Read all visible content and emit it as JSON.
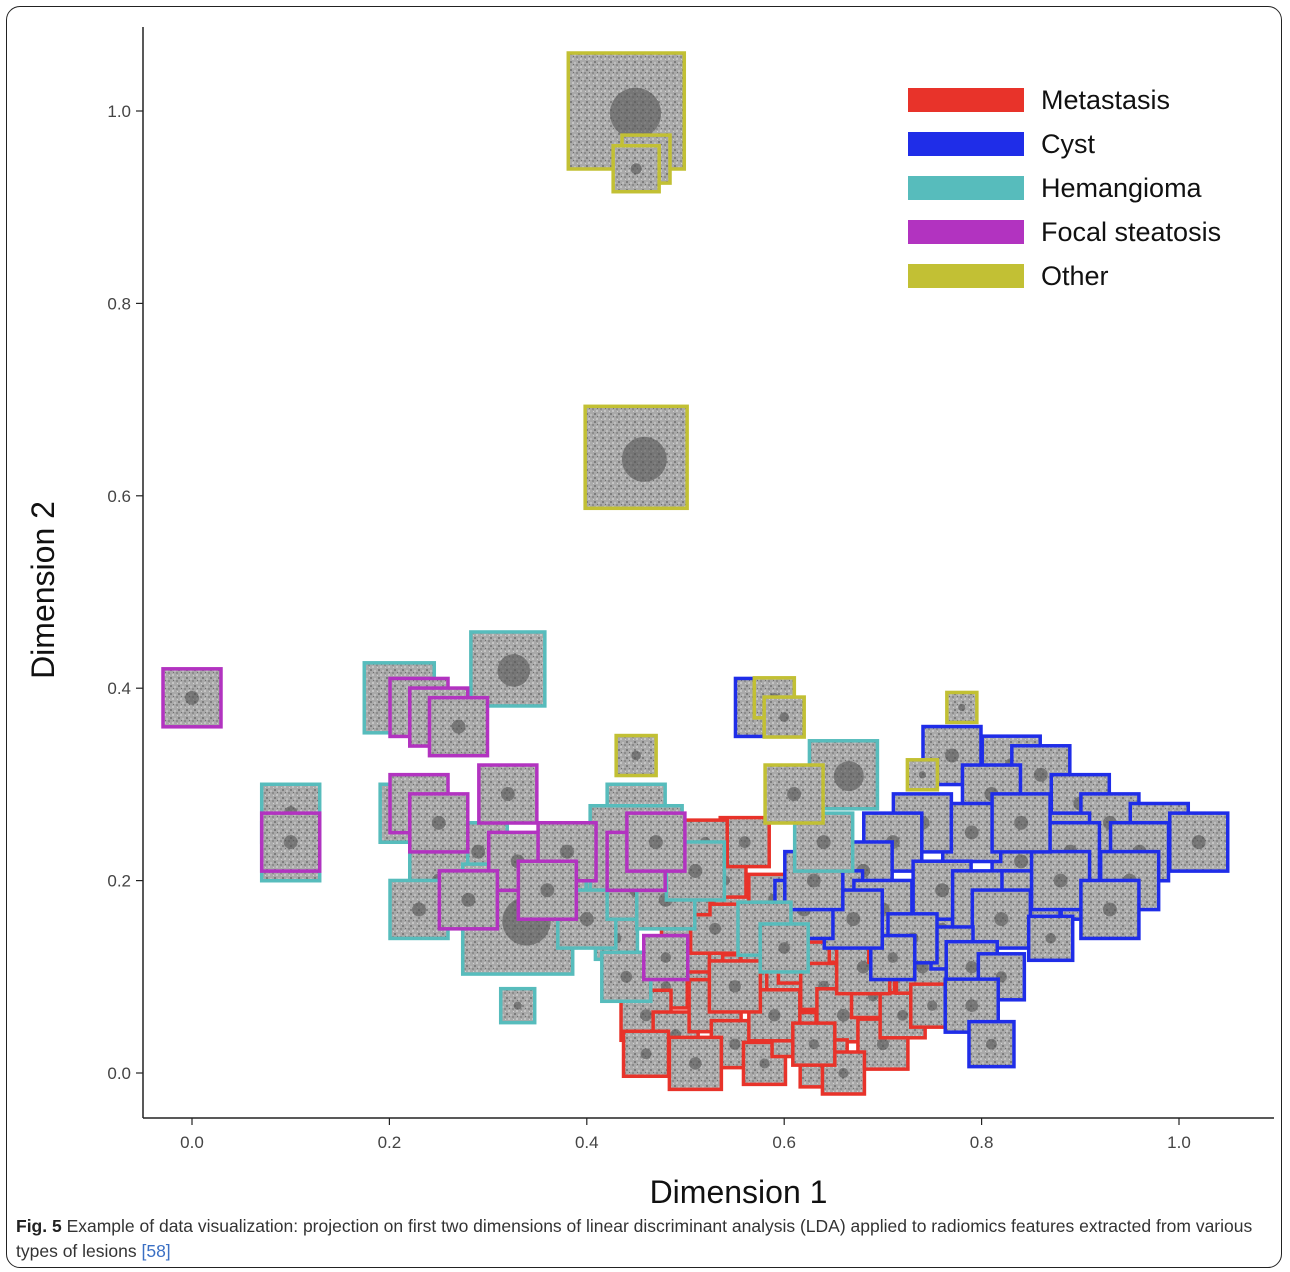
{
  "chart_data": {
    "type": "scatter",
    "title": "",
    "xlabel": "Dimension 1",
    "ylabel": "Dimension 2",
    "xlim": [
      -0.05,
      1.1
    ],
    "ylim": [
      -0.05,
      1.08
    ],
    "x_ticks": [
      "0.0",
      "0.2",
      "0.4",
      "0.6",
      "0.8",
      "1.0"
    ],
    "y_ticks": [
      "0.0",
      "0.2",
      "0.4",
      "0.6",
      "0.8",
      "1.0"
    ],
    "grid": false,
    "legend_position": "top-right",
    "marker": "image-thumbnail",
    "series": [
      {
        "name": "Metastasis",
        "color": "#e8332a",
        "points": [
          [
            0.54,
            0.2
          ],
          [
            0.56,
            0.24
          ],
          [
            0.55,
            0.16
          ],
          [
            0.59,
            0.18
          ],
          [
            0.57,
            0.13
          ],
          [
            0.52,
            0.11
          ],
          [
            0.5,
            0.13
          ],
          [
            0.48,
            0.09
          ],
          [
            0.46,
            0.06
          ],
          [
            0.49,
            0.04
          ],
          [
            0.53,
            0.07
          ],
          [
            0.55,
            0.03
          ],
          [
            0.58,
            0.01
          ],
          [
            0.6,
            0.08
          ],
          [
            0.61,
            0.04
          ],
          [
            0.62,
            0.12
          ],
          [
            0.64,
            0.09
          ],
          [
            0.66,
            0.06
          ],
          [
            0.67,
            0.14
          ],
          [
            0.69,
            0.08
          ],
          [
            0.7,
            0.03
          ],
          [
            0.72,
            0.06
          ],
          [
            0.74,
            0.11
          ],
          [
            0.64,
            0.01
          ],
          [
            0.66,
            -0.0
          ],
          [
            0.53,
            0.15
          ],
          [
            0.56,
            0.1
          ],
          [
            0.59,
            0.06
          ],
          [
            0.62,
            0.16
          ],
          [
            0.68,
            0.11
          ],
          [
            0.71,
            0.14
          ],
          [
            0.75,
            0.07
          ],
          [
            0.76,
            0.15
          ],
          [
            0.46,
            0.02
          ],
          [
            0.51,
            0.01
          ],
          [
            0.58,
            0.14
          ],
          [
            0.63,
            0.03
          ],
          [
            0.5,
            0.19
          ],
          [
            0.52,
            0.24
          ],
          [
            0.55,
            0.09
          ],
          [
            0.42,
            0.2
          ]
        ]
      },
      {
        "name": "Cyst",
        "color": "#1f2de8",
        "points": [
          [
            0.77,
            0.33
          ],
          [
            0.83,
            0.32
          ],
          [
            0.86,
            0.31
          ],
          [
            0.81,
            0.29
          ],
          [
            0.9,
            0.28
          ],
          [
            0.93,
            0.26
          ],
          [
            0.98,
            0.25
          ],
          [
            1.02,
            0.24
          ],
          [
            0.96,
            0.23
          ],
          [
            0.88,
            0.24
          ],
          [
            0.84,
            0.22
          ],
          [
            0.79,
            0.25
          ],
          [
            0.74,
            0.26
          ],
          [
            0.71,
            0.24
          ],
          [
            0.68,
            0.21
          ],
          [
            0.65,
            0.18
          ],
          [
            0.7,
            0.17
          ],
          [
            0.76,
            0.19
          ],
          [
            0.8,
            0.18
          ],
          [
            0.85,
            0.18
          ],
          [
            0.91,
            0.19
          ],
          [
            0.95,
            0.2
          ],
          [
            0.89,
            0.23
          ],
          [
            0.82,
            0.16
          ],
          [
            0.77,
            0.13
          ],
          [
            0.73,
            0.14
          ],
          [
            0.71,
            0.12
          ],
          [
            0.79,
            0.11
          ],
          [
            0.82,
            0.1
          ],
          [
            0.79,
            0.07
          ],
          [
            0.67,
            0.16
          ],
          [
            0.62,
            0.17
          ],
          [
            0.63,
            0.2
          ],
          [
            0.81,
            0.03
          ],
          [
            0.88,
            0.2
          ],
          [
            0.93,
            0.17
          ],
          [
            0.84,
            0.26
          ],
          [
            0.58,
            0.38
          ],
          [
            0.87,
            0.14
          ]
        ]
      },
      {
        "name": "Hemangioma",
        "color": "#57bcbc",
        "points": [
          [
            0.1,
            0.27
          ],
          [
            0.1,
            0.23
          ],
          [
            0.21,
            0.39
          ],
          [
            0.32,
            0.42
          ],
          [
            0.22,
            0.27
          ],
          [
            0.29,
            0.23
          ],
          [
            0.25,
            0.2
          ],
          [
            0.23,
            0.17
          ],
          [
            0.45,
            0.27
          ],
          [
            0.45,
            0.23
          ],
          [
            0.37,
            0.19
          ],
          [
            0.33,
            0.16
          ],
          [
            0.43,
            0.14
          ],
          [
            0.44,
            0.1
          ],
          [
            0.33,
            0.07
          ],
          [
            0.66,
            0.31
          ],
          [
            0.64,
            0.24
          ],
          [
            0.58,
            0.15
          ],
          [
            0.6,
            0.13
          ],
          [
            0.4,
            0.16
          ],
          [
            0.45,
            0.19
          ],
          [
            0.48,
            0.18
          ],
          [
            0.51,
            0.21
          ]
        ]
      },
      {
        "name": "Focal steatosis",
        "color": "#b233c0",
        "points": [
          [
            0.0,
            0.39
          ],
          [
            0.1,
            0.24
          ],
          [
            0.23,
            0.38
          ],
          [
            0.25,
            0.37
          ],
          [
            0.27,
            0.36
          ],
          [
            0.23,
            0.28
          ],
          [
            0.25,
            0.26
          ],
          [
            0.32,
            0.29
          ],
          [
            0.33,
            0.22
          ],
          [
            0.38,
            0.23
          ],
          [
            0.45,
            0.22
          ],
          [
            0.47,
            0.24
          ],
          [
            0.28,
            0.18
          ],
          [
            0.36,
            0.19
          ],
          [
            0.48,
            0.12
          ]
        ]
      },
      {
        "name": "Other",
        "color": "#c2c034",
        "points": [
          [
            0.44,
            1.0
          ],
          [
            0.46,
            0.95
          ],
          [
            0.45,
            0.94
          ],
          [
            0.45,
            0.64
          ],
          [
            0.45,
            0.33
          ],
          [
            0.59,
            0.39
          ],
          [
            0.6,
            0.37
          ],
          [
            0.61,
            0.29
          ],
          [
            0.74,
            0.31
          ],
          [
            0.78,
            0.38
          ]
        ]
      }
    ]
  },
  "caption": {
    "fig_label": "Fig. 5",
    "text": " Example of data visualization: projection on first two dimensions of linear discriminant analysis (LDA) applied to radiomics features extracted from various types of lesions ",
    "ref": "[58]"
  }
}
